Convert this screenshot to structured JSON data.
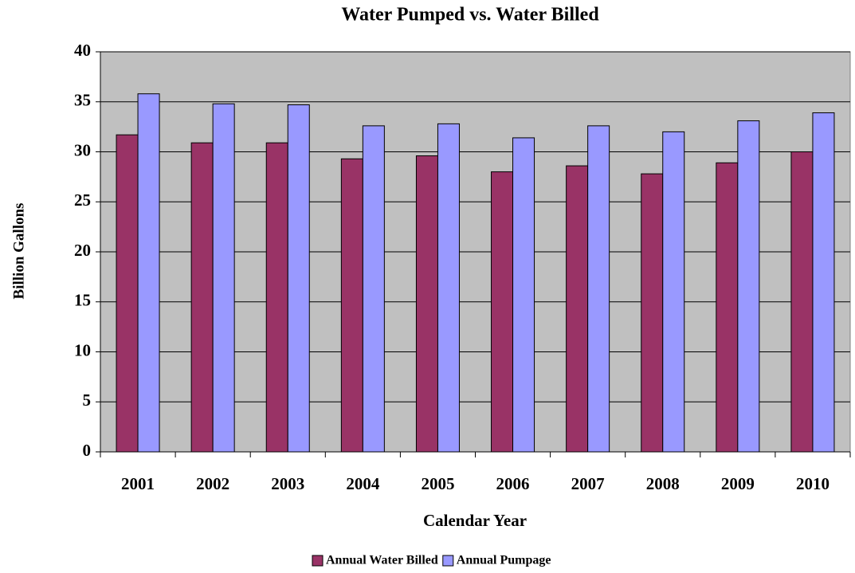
{
  "chart_data": {
    "type": "bar",
    "title": "Water Pumped vs. Water Billed",
    "x_label": "Calendar Year",
    "y_label": "Billion Gallons",
    "categories": [
      "2001",
      "2002",
      "2003",
      "2004",
      "2005",
      "2006",
      "2007",
      "2008",
      "2009",
      "2010"
    ],
    "series": [
      {
        "name": "Annual Water Billed",
        "color": "#993366",
        "values": [
          31.7,
          30.9,
          30.9,
          29.3,
          29.6,
          28.0,
          28.6,
          27.8,
          28.9,
          30.0
        ]
      },
      {
        "name": "Annual Pumpage",
        "color": "#9999ff",
        "values": [
          35.8,
          34.8,
          34.7,
          32.6,
          32.8,
          31.4,
          32.6,
          32.0,
          33.1,
          33.9
        ]
      }
    ],
    "ylim": [
      0,
      40
    ],
    "yticks": [
      0,
      5,
      10,
      15,
      20,
      25,
      30,
      35,
      40
    ],
    "grid": true,
    "legend": "bottom"
  }
}
